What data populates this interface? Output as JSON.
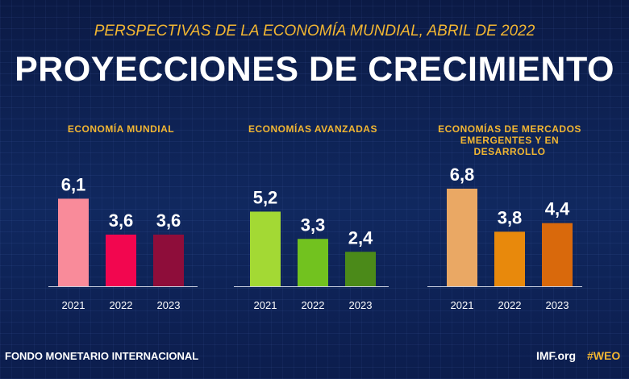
{
  "header": {
    "subtitle": "PERSPECTIVAS DE LA ECONOMÍA MUNDIAL, ABRIL DE 2022",
    "title": "PROYECCIONES DE CRECIMIENTO"
  },
  "chart_data": [
    {
      "type": "bar",
      "title": "ECONOMÍA MUNDIAL",
      "categories": [
        "2021",
        "2022",
        "2023"
      ],
      "values": [
        6.1,
        3.6,
        3.6
      ],
      "value_labels": [
        "6,1",
        "3,6",
        "3,6"
      ],
      "colors": [
        "#f98b9a",
        "#f2064f",
        "#8e0d3a"
      ]
    },
    {
      "type": "bar",
      "title": "ECONOMÍAS AVANZADAS",
      "categories": [
        "2021",
        "2022",
        "2023"
      ],
      "values": [
        5.2,
        3.3,
        2.4
      ],
      "value_labels": [
        "5,2",
        "3,3",
        "2,4"
      ],
      "colors": [
        "#a3d934",
        "#72c21f",
        "#4b8a19"
      ]
    },
    {
      "type": "bar",
      "title": "ECONOMÍAS DE MERCADOS EMERGENTES Y EN DESARROLLO",
      "categories": [
        "2021",
        "2022",
        "2023"
      ],
      "values": [
        6.8,
        3.8,
        4.4
      ],
      "value_labels": [
        "6,8",
        "3,8",
        "4,4"
      ],
      "colors": [
        "#eaa864",
        "#e8890c",
        "#d9690c"
      ]
    }
  ],
  "footer": {
    "organization": "FONDO MONETARIO INTERNACIONAL",
    "website": "IMF.org",
    "hashtag": "#WEO"
  }
}
